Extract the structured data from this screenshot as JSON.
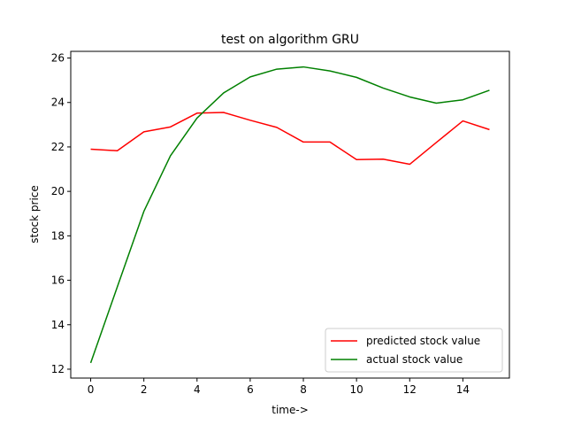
{
  "chart_data": {
    "type": "line",
    "title": "test on algorithm GRU",
    "xlabel": "time->",
    "ylabel": "stock price",
    "x": [
      0,
      1,
      2,
      3,
      4,
      5,
      6,
      7,
      8,
      9,
      10,
      11,
      12,
      13,
      14,
      15
    ],
    "xlim": [
      -0.75,
      15.75
    ],
    "ylim": [
      11.6,
      26.3
    ],
    "xticks": [
      0,
      2,
      4,
      6,
      8,
      10,
      12,
      14
    ],
    "yticks": [
      12,
      14,
      16,
      18,
      20,
      22,
      24,
      26
    ],
    "grid": false,
    "legend_position": "bottom-right",
    "series": [
      {
        "name": "predicted stock value",
        "color": "#ff0000",
        "values": [
          21.9,
          21.83,
          22.68,
          22.9,
          23.52,
          23.55,
          23.2,
          22.88,
          22.22,
          22.22,
          21.43,
          21.45,
          21.22,
          22.2,
          23.17,
          22.78
        ]
      },
      {
        "name": "actual stock value",
        "color": "#008000",
        "values": [
          12.28,
          15.7,
          19.1,
          21.6,
          23.3,
          24.43,
          25.15,
          25.5,
          25.6,
          25.42,
          25.13,
          24.65,
          24.25,
          23.97,
          24.12,
          24.55
        ]
      }
    ]
  }
}
